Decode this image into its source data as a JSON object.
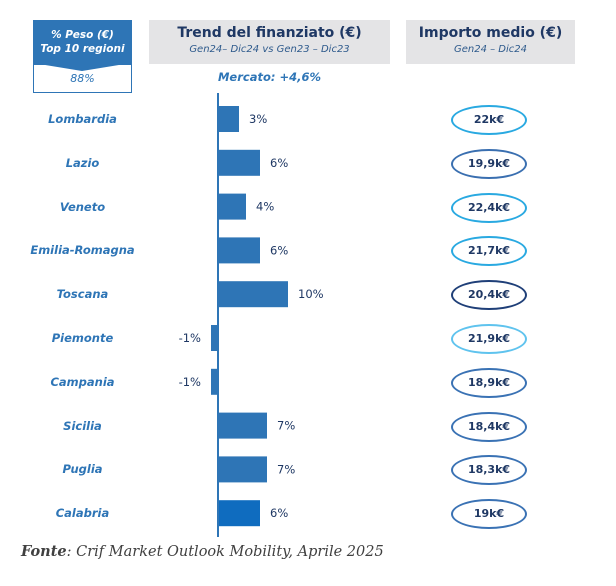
{
  "peso": {
    "title_line1": "% Peso (€)",
    "title_line2": "Top 10 regioni",
    "value": "88%"
  },
  "trend_panel": {
    "title": "Trend del finanziato (€)",
    "subtitle": "Gen24– Dic24 vs Gen23 – Dic23",
    "mercato": "Mercato: +4,6%"
  },
  "importo_panel": {
    "title": "Importo medio (€)",
    "subtitle": "Gen24 – Dic24"
  },
  "source": {
    "label": "Fonte",
    "text": ": Crif Market Outlook Mobility, Aprile 2025"
  },
  "colors": {
    "bar": "#2e75b6",
    "bar_highlight": "#0f6cbf",
    "axis": "#2e75b6",
    "label": "#1f3864"
  },
  "chart_data": {
    "type": "bar",
    "orientation": "horizontal",
    "title": "Trend del finanziato (€)",
    "subtitle": "Gen24– Dic24 vs Gen23 – Dic23",
    "annotation": "Mercato: +4,6%",
    "xlabel": "",
    "ylabel": "",
    "xlim": [
      -1,
      10
    ],
    "grid": false,
    "categories": [
      "Lombardia",
      "Lazio",
      "Veneto",
      "Emilia-Romagna",
      "Toscana",
      "Piemonte",
      "Campania",
      "Sicilia",
      "Puglia",
      "Calabria"
    ],
    "values": [
      3,
      6,
      4,
      6,
      10,
      -1,
      -1,
      7,
      7,
      6
    ],
    "value_labels": [
      "3%",
      "6%",
      "4%",
      "6%",
      "10%",
      "-1%",
      "-1%",
      "7%",
      "7%",
      "6%"
    ],
    "importo_medio": [
      "22k€",
      "19,9k€",
      "22,4k€",
      "21,7k€",
      "20,4k€",
      "21,9k€",
      "18,9k€",
      "18,4k€",
      "18,3k€",
      "19k€"
    ],
    "importo_medio_values_keur": [
      22,
      19.9,
      22.4,
      21.7,
      20.4,
      21.9,
      18.9,
      18.4,
      18.3,
      19
    ],
    "importo_border_colors": [
      "#29a9e1",
      "#3a6fb0",
      "#29a9e1",
      "#29a9e1",
      "#1f3f78",
      "#5fc3ee",
      "#3a72b4",
      "#3a72b4",
      "#3a72b4",
      "#3a72b4"
    ]
  }
}
